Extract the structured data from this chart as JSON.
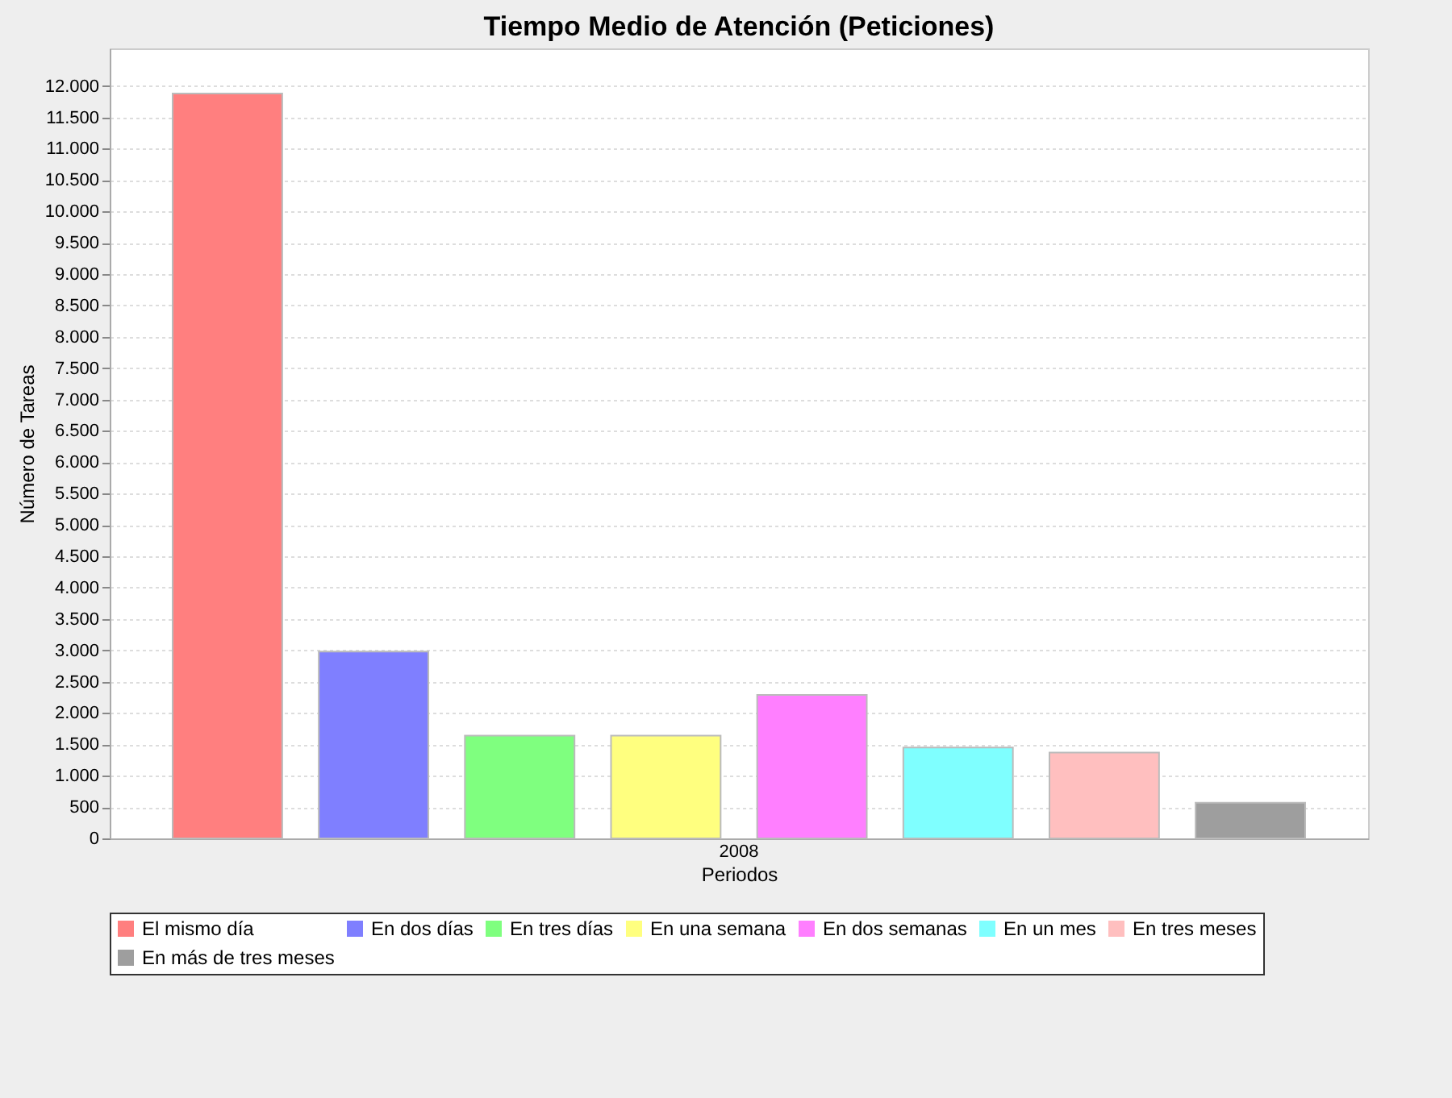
{
  "chart_data": {
    "type": "bar",
    "title": "Tiempo Medio de Atención (Peticiones)",
    "xlabel": "Periodos",
    "ylabel": "Número de Tareas",
    "categories": [
      "2008"
    ],
    "series": [
      {
        "name": "El mismo día",
        "color": "#ff7f7f",
        "values": [
          11880
        ]
      },
      {
        "name": "En dos días",
        "color": "#7f7fff",
        "values": [
          2980
        ]
      },
      {
        "name": "En tres días",
        "color": "#7fff7f",
        "values": [
          1640
        ]
      },
      {
        "name": "En una semana",
        "color": "#ffff7f",
        "values": [
          1640
        ]
      },
      {
        "name": "En dos semanas",
        "color": "#ff7fff",
        "values": [
          2290
        ]
      },
      {
        "name": "En un mes",
        "color": "#7fffff",
        "values": [
          1450
        ]
      },
      {
        "name": "En tres meses",
        "color": "#ffbfbf",
        "values": [
          1370
        ]
      },
      {
        "name": "En más de tres meses",
        "color": "#9e9e9e",
        "values": [
          570
        ]
      }
    ],
    "ylim": [
      0,
      12600
    ],
    "yticks": [
      0,
      500,
      {
        "value": 1000,
        "label": "1.000"
      },
      {
        "value": 1500,
        "label": "1.500"
      },
      {
        "value": 2000,
        "label": "2.000"
      },
      {
        "value": 2500,
        "label": "2.500"
      },
      {
        "value": 3000,
        "label": "3.000"
      },
      {
        "value": 3500,
        "label": "3.500"
      },
      {
        "value": 4000,
        "label": "4.000"
      },
      {
        "value": 4500,
        "label": "4.500"
      },
      {
        "value": 5000,
        "label": "5.000"
      },
      {
        "value": 5500,
        "label": "5.500"
      },
      {
        "value": 6000,
        "label": "6.000"
      },
      {
        "value": 6500,
        "label": "6.500"
      },
      {
        "value": 7000,
        "label": "7.000"
      },
      {
        "value": 7500,
        "label": "7.500"
      },
      {
        "value": 8000,
        "label": "8.000"
      },
      {
        "value": 8500,
        "label": "8.500"
      },
      {
        "value": 9000,
        "label": "9.000"
      },
      {
        "value": 9500,
        "label": "9.500"
      },
      {
        "value": 10000,
        "label": "10.000"
      },
      {
        "value": 10500,
        "label": "10.500"
      },
      {
        "value": 11000,
        "label": "11.000"
      },
      {
        "value": 11500,
        "label": "11.500"
      },
      {
        "value": 12000,
        "label": "12.000"
      }
    ],
    "grid": "y",
    "legend": "bottom"
  }
}
